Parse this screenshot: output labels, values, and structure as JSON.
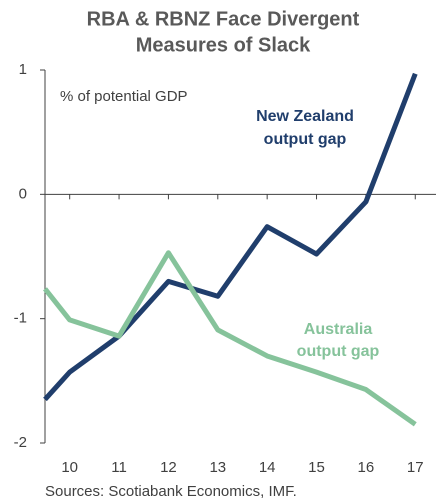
{
  "chart_data": {
    "type": "line",
    "title": [
      "RBA & RBNZ Face Divergent",
      "Measures of Slack"
    ],
    "y_label": "% of potential GDP",
    "source": "Sources: Scotiabank Economics, IMF.",
    "x": [
      9.5,
      10,
      11,
      12,
      13,
      14,
      15,
      16,
      17
    ],
    "series": [
      {
        "name": [
          "New Zealand",
          "output gap"
        ],
        "color": "#203e6c",
        "values": [
          -1.65,
          -1.43,
          -1.14,
          -0.7,
          -0.82,
          -0.26,
          -0.48,
          -0.06,
          0.97
        ]
      },
      {
        "name": [
          "Australia",
          "output gap"
        ],
        "color": "#86c39b",
        "values": [
          -0.76,
          -1.01,
          -1.14,
          -0.47,
          -1.09,
          -1.3,
          -1.43,
          -1.57,
          -1.85
        ]
      }
    ],
    "xlim": [
      9.5,
      17.42
    ],
    "xticks": [
      10,
      11,
      12,
      13,
      14,
      15,
      16,
      17
    ],
    "ylim": [
      -2,
      1
    ],
    "yticks": [
      1,
      0,
      -1,
      -2
    ]
  }
}
